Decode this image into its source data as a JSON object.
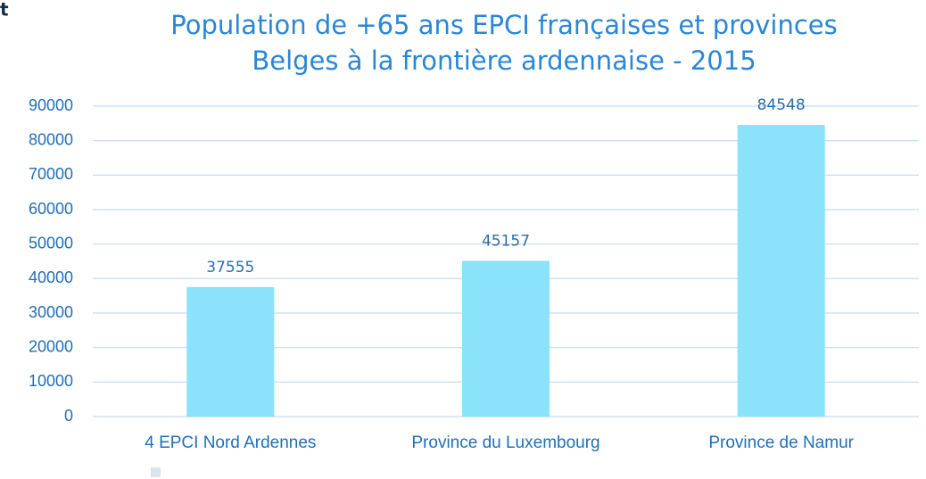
{
  "fragment": "t",
  "chart_data": {
    "type": "bar",
    "title": [
      "Population de +65 ans EPCI françaises et provinces",
      "Belges à la frontière ardennaise - 2015"
    ],
    "categories": [
      "4 EPCI Nord Ardennes",
      "Province du Luxembourg",
      "Province de Namur"
    ],
    "values": [
      37555,
      45157,
      84548
    ],
    "color": "#8ae2fb",
    "ylim": [
      0,
      90000
    ],
    "yticks": [
      0,
      10000,
      20000,
      30000,
      40000,
      50000,
      60000,
      70000,
      80000,
      90000
    ],
    "grid": true
  }
}
